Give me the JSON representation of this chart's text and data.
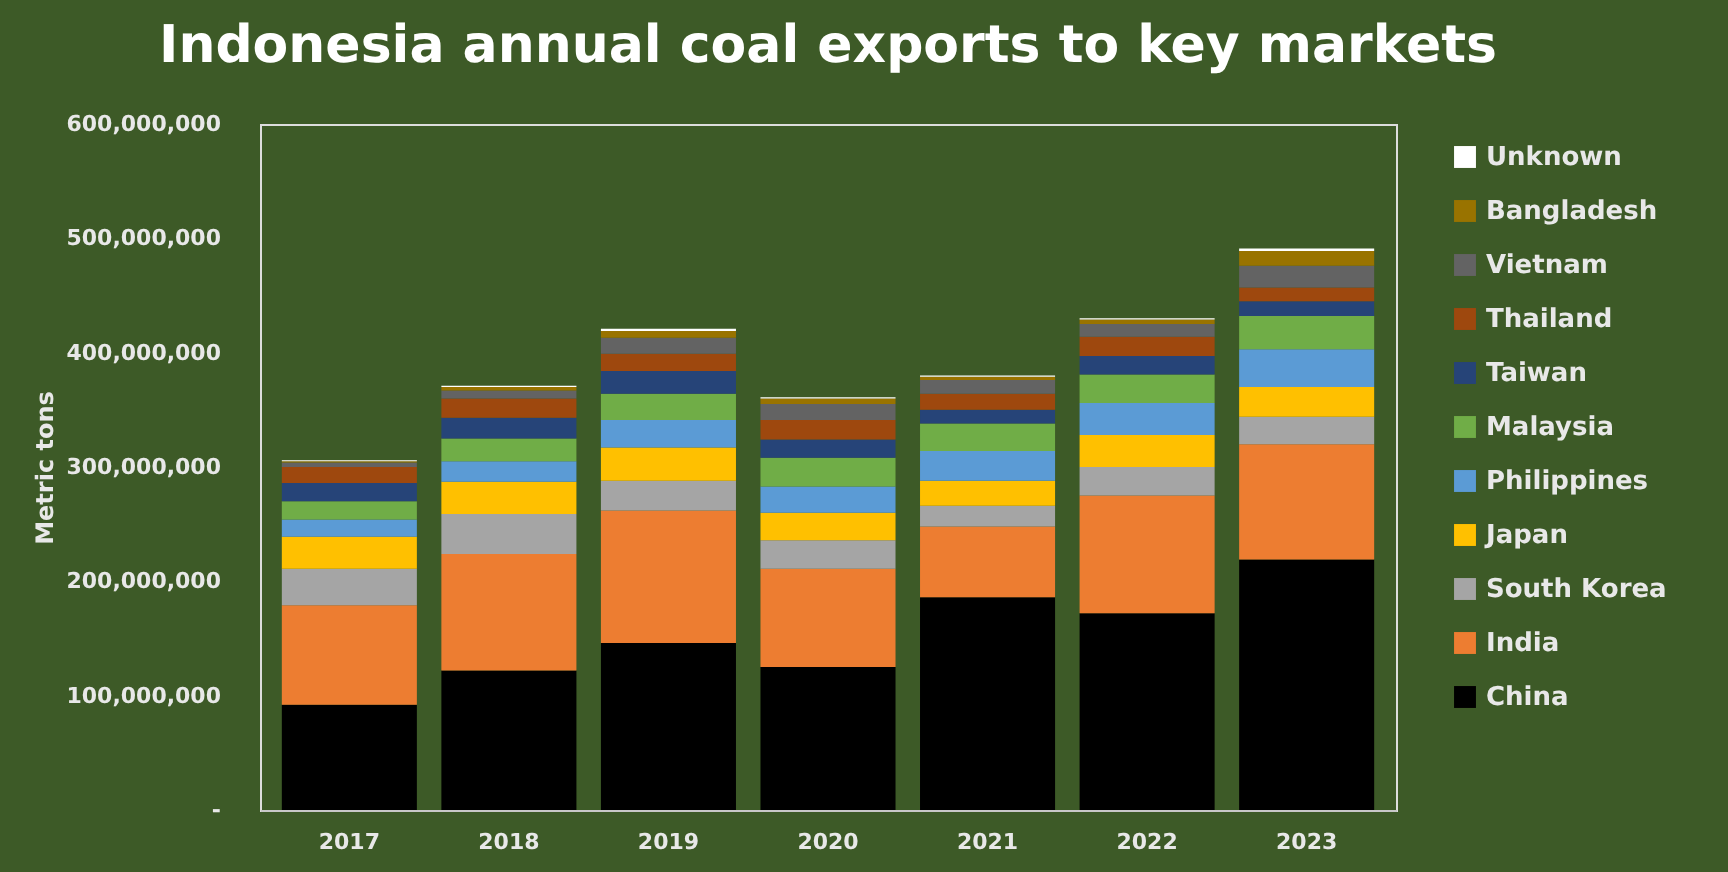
{
  "chart_data": {
    "type": "bar",
    "stacked": true,
    "title": "Indonesia annual coal exports to key markets",
    "ylabel": "Metric tons",
    "categories": [
      "2017",
      "2018",
      "2019",
      "2020",
      "2021",
      "2022",
      "2023"
    ],
    "ylim": [
      0,
      600000000
    ],
    "yticks": [
      {
        "value": 0,
        "label": "-"
      },
      {
        "value": 100000000,
        "label": "100,000,000"
      },
      {
        "value": 200000000,
        "label": "200,000,000"
      },
      {
        "value": 300000000,
        "label": "300,000,000"
      },
      {
        "value": 400000000,
        "label": "400,000,000"
      },
      {
        "value": 500000000,
        "label": "500,000,000"
      },
      {
        "value": 600000000,
        "label": "600,000,000"
      }
    ],
    "grid": false,
    "legend": "right",
    "series": [
      {
        "name": "China",
        "color": "#000000",
        "values": [
          92000000,
          122000000,
          146000000,
          125000000,
          186000000,
          172000000,
          219000000
        ]
      },
      {
        "name": "India",
        "color": "#ed7d31",
        "values": [
          87000000,
          102000000,
          116000000,
          86000000,
          62000000,
          103000000,
          101000000
        ]
      },
      {
        "name": "South Korea",
        "color": "#a5a5a5",
        "values": [
          32000000,
          35000000,
          26000000,
          25000000,
          18000000,
          25000000,
          24000000
        ]
      },
      {
        "name": "Japan",
        "color": "#ffc000",
        "values": [
          28000000,
          28000000,
          29000000,
          24000000,
          22000000,
          28000000,
          26000000
        ]
      },
      {
        "name": "Philippines",
        "color": "#5b9bd5",
        "values": [
          15000000,
          18000000,
          24000000,
          23000000,
          26000000,
          28000000,
          33000000
        ]
      },
      {
        "name": "Malaysia",
        "color": "#70ad47",
        "values": [
          16000000,
          20000000,
          23000000,
          25000000,
          24000000,
          25000000,
          29000000
        ]
      },
      {
        "name": "Taiwan",
        "color": "#264478",
        "values": [
          16000000,
          18000000,
          20000000,
          16000000,
          12000000,
          16000000,
          13000000
        ]
      },
      {
        "name": "Thailand",
        "color": "#9e480e",
        "values": [
          14000000,
          17000000,
          15000000,
          17000000,
          14000000,
          17000000,
          12000000
        ]
      },
      {
        "name": "Vietnam",
        "color": "#636363",
        "values": [
          4000000,
          7000000,
          14000000,
          14000000,
          12000000,
          11000000,
          19000000
        ]
      },
      {
        "name": "Bangladesh",
        "color": "#997300",
        "values": [
          1000000,
          3000000,
          6000000,
          5000000,
          3000000,
          4000000,
          13000000
        ]
      },
      {
        "name": "Unknown",
        "color": "#ffffff",
        "values": [
          1000000,
          1000000,
          2000000,
          1000000,
          1000000,
          1000000,
          2000000
        ]
      }
    ]
  }
}
